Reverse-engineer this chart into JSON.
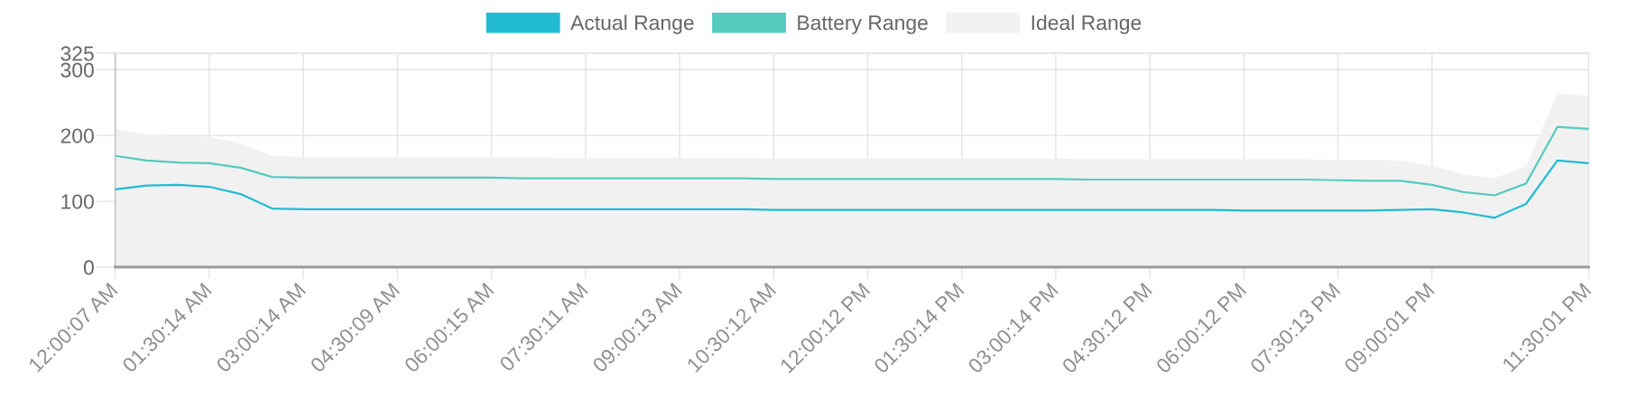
{
  "chart_data": {
    "type": "line",
    "categories": [
      "12:00:07 AM",
      null,
      null,
      "01:30:14 AM",
      null,
      null,
      "03:00:14 AM",
      null,
      null,
      "04:30:09 AM",
      null,
      null,
      "06:00:15 AM",
      null,
      null,
      "07:30:11 AM",
      null,
      null,
      "09:00:13 AM",
      null,
      null,
      "10:30:12 AM",
      null,
      null,
      "12:00:12 PM",
      null,
      null,
      "01:30:14 PM",
      null,
      null,
      "03:00:14 PM",
      null,
      null,
      "04:30:12 PM",
      null,
      null,
      "06:00:12 PM",
      null,
      null,
      "07:30:13 PM",
      null,
      null,
      "09:00:01 PM",
      null,
      null,
      null,
      null,
      "11:30:01 PM"
    ],
    "series": [
      {
        "name": "Actual Range",
        "color": "#22bbd3",
        "values": [
          118,
          124,
          125,
          122,
          111,
          89,
          88,
          88,
          88,
          88,
          88,
          88,
          88,
          88,
          88,
          88,
          88,
          88,
          88,
          88,
          88,
          87,
          87,
          87,
          87,
          87,
          87,
          87,
          87,
          87,
          87,
          87,
          87,
          87,
          87,
          87,
          86,
          86,
          86,
          86,
          86,
          87,
          88,
          83,
          75,
          96,
          162,
          158
        ]
      },
      {
        "name": "Battery Range",
        "color": "#55cbbe",
        "values": [
          169,
          162,
          159,
          158,
          151,
          137,
          136,
          136,
          136,
          136,
          136,
          136,
          136,
          135,
          135,
          135,
          135,
          135,
          135,
          135,
          135,
          134,
          134,
          134,
          134,
          134,
          134,
          134,
          134,
          134,
          134,
          133,
          133,
          133,
          133,
          133,
          133,
          133,
          133,
          132,
          131,
          131,
          125,
          114,
          109,
          127,
          213,
          210
        ]
      },
      {
        "name": "Ideal Range",
        "type": "area",
        "color": "#f1f1f1",
        "values": [
          210,
          202,
          199,
          198,
          188,
          169,
          167,
          167,
          167,
          167,
          167,
          167,
          167,
          167,
          166,
          166,
          166,
          166,
          166,
          166,
          166,
          165,
          165,
          165,
          165,
          165,
          165,
          165,
          165,
          165,
          165,
          164,
          164,
          164,
          164,
          164,
          164,
          164,
          164,
          163,
          163,
          162,
          154,
          141,
          135,
          153,
          264,
          260
        ]
      }
    ],
    "ylim": [
      0,
      325
    ],
    "yticks": [
      0,
      100,
      200,
      300,
      325
    ],
    "grid": true,
    "legend": "top"
  }
}
